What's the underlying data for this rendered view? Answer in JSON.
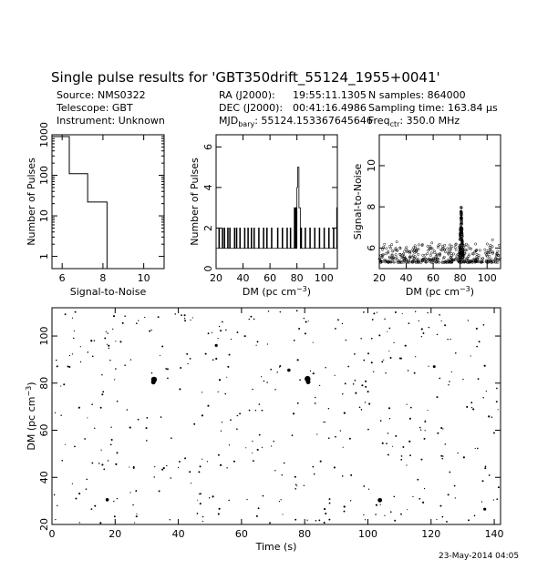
{
  "title": "Single pulse results for 'GBT350drift_55124_1955+0041'",
  "info": {
    "col1": [
      {
        "label": "Source: NMS0322"
      },
      {
        "label": "Telescope: GBT"
      },
      {
        "label": "Instrument: Unknown"
      }
    ],
    "col2": [
      {
        "label": "RA (J2000):",
        "value": "19:55:11.1305"
      },
      {
        "label": "DEC (J2000):",
        "value": "00:41:16.4986"
      },
      {
        "label": "MJD",
        "sub": "bary",
        "value": ": 55124.153367645646"
      }
    ],
    "col3": [
      {
        "label": "N samples: 864000"
      },
      {
        "label": "Sampling time: 163.84 µs"
      },
      {
        "label": "Freq",
        "sub": "ctr",
        "value": ": 350.0 MHz"
      }
    ]
  },
  "timestamp": "23-May-2014 04:05",
  "chart_data": [
    {
      "type": "step",
      "name": "snr-histogram",
      "xlabel": "Signal-to-Noise",
      "ylabel": "Number of Pulses",
      "xlim": [
        5.5,
        11.0
      ],
      "ylim": [
        0.5,
        1000
      ],
      "yscale": "log",
      "xticks": [
        6,
        8,
        10
      ],
      "yticks": [
        {
          "v": 1,
          "label": "1"
        },
        {
          "v": 10,
          "label": "10"
        },
        {
          "v": 100,
          "label": "100"
        },
        {
          "v": 1000,
          "label": "1000"
        }
      ],
      "bins": [
        {
          "x0": 5.5,
          "x1": 6.35,
          "count": 900
        },
        {
          "x0": 6.35,
          "x1": 7.25,
          "count": 110
        },
        {
          "x0": 7.25,
          "x1": 8.2,
          "count": 22
        }
      ]
    },
    {
      "type": "histogram",
      "name": "dm-histogram",
      "xlabel": "DM (pc cm",
      "xlabel_sup": "−3",
      "xlabel_end": ")",
      "ylabel": "Number of Pulses",
      "xlim": [
        20,
        110
      ],
      "ylim": [
        0,
        6.6
      ],
      "xticks": [
        20,
        40,
        60,
        80,
        100
      ],
      "yticks": [
        0,
        2,
        4,
        6
      ],
      "bin_width": 0.5,
      "baseline_count": 1,
      "spikes": [
        {
          "dm": 22.0,
          "count": 2
        },
        {
          "dm": 24.5,
          "count": 2
        },
        {
          "dm": 26.0,
          "count": 2
        },
        {
          "dm": 28.5,
          "count": 2
        },
        {
          "dm": 30.0,
          "count": 2
        },
        {
          "dm": 33.5,
          "count": 2
        },
        {
          "dm": 35.0,
          "count": 2
        },
        {
          "dm": 37.5,
          "count": 2
        },
        {
          "dm": 41.0,
          "count": 2
        },
        {
          "dm": 43.5,
          "count": 2
        },
        {
          "dm": 46.0,
          "count": 2
        },
        {
          "dm": 48.0,
          "count": 2
        },
        {
          "dm": 51.5,
          "count": 2
        },
        {
          "dm": 55.0,
          "count": 2
        },
        {
          "dm": 57.5,
          "count": 2
        },
        {
          "dm": 61.0,
          "count": 2
        },
        {
          "dm": 65.5,
          "count": 2
        },
        {
          "dm": 69.0,
          "count": 2
        },
        {
          "dm": 72.5,
          "count": 2
        },
        {
          "dm": 75.0,
          "count": 2
        },
        {
          "dm": 78.0,
          "count": 3
        },
        {
          "dm": 79.0,
          "count": 3
        },
        {
          "dm": 80.0,
          "count": 4
        },
        {
          "dm": 80.5,
          "count": 5
        },
        {
          "dm": 81.0,
          "count": 5
        },
        {
          "dm": 81.5,
          "count": 3
        },
        {
          "dm": 82.0,
          "count": 3
        },
        {
          "dm": 83.0,
          "count": 2
        },
        {
          "dm": 86.0,
          "count": 2
        },
        {
          "dm": 89.5,
          "count": 2
        },
        {
          "dm": 93.0,
          "count": 2
        },
        {
          "dm": 96.5,
          "count": 2
        },
        {
          "dm": 100.0,
          "count": 2
        },
        {
          "dm": 103.5,
          "count": 2
        },
        {
          "dm": 107.0,
          "count": 2
        },
        {
          "dm": 109.5,
          "count": 3
        }
      ]
    },
    {
      "type": "scatter",
      "name": "snr-vs-dm",
      "xlabel": "DM (pc cm",
      "xlabel_sup": "−3",
      "xlabel_end": ")",
      "ylabel": "Signal-to-Noise",
      "xlim": [
        20,
        110
      ],
      "ylim": [
        5.0,
        11.5
      ],
      "xticks": [
        20,
        40,
        60,
        80,
        100
      ],
      "yticks": [
        6,
        8,
        10
      ],
      "noise_band": {
        "dm_range": [
          20,
          110
        ],
        "snr_range": [
          5.3,
          6.2
        ],
        "count": 420
      },
      "peak": {
        "dm_center": 80.8,
        "dm_halfwidth": 1.6,
        "snr_max": 8.1,
        "count": 110
      },
      "outliers": [
        {
          "dm": 104.0,
          "snr": 6.4
        },
        {
          "dm": 59.0,
          "snr": 6.25
        },
        {
          "dm": 33.0,
          "snr": 6.3
        }
      ]
    },
    {
      "type": "scatter",
      "name": "dm-vs-time",
      "xlabel": "Time (s)",
      "ylabel": "DM (pc cm",
      "ylabel_sup": "−3",
      "ylabel_end": ")",
      "xlim": [
        0,
        142
      ],
      "ylim": [
        20,
        112
      ],
      "xticks": [
        0,
        20,
        40,
        60,
        80,
        100,
        120,
        140
      ],
      "yticks": [
        20,
        40,
        60,
        80,
        100
      ],
      "background_count": 440,
      "bright": [
        {
          "t": 32.3,
          "dm": 81.5,
          "size": 3.2
        },
        {
          "t": 32.1,
          "dm": 80.4,
          "size": 2.5
        },
        {
          "t": 80.9,
          "dm": 81.8,
          "size": 3.2
        },
        {
          "t": 81.1,
          "dm": 80.5,
          "size": 2.5
        },
        {
          "t": 103.8,
          "dm": 30.3,
          "size": 2.4
        },
        {
          "t": 17.5,
          "dm": 30.5,
          "size": 1.8
        },
        {
          "t": 75.0,
          "dm": 85.5,
          "size": 1.8
        },
        {
          "t": 52.0,
          "dm": 96.0,
          "size": 1.6
        },
        {
          "t": 121.0,
          "dm": 87.0,
          "size": 1.5
        },
        {
          "t": 137.0,
          "dm": 26.5,
          "size": 1.6
        }
      ]
    }
  ]
}
